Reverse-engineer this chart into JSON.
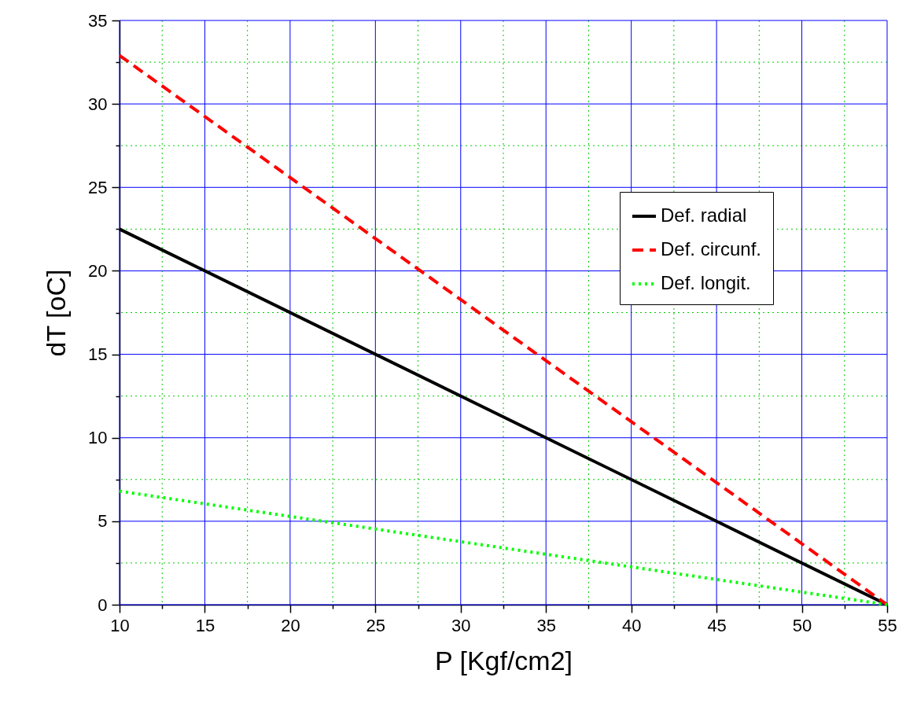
{
  "chart_data": {
    "type": "line",
    "xlabel": "P [Kgf/cm2]",
    "ylabel": "dT [oC]",
    "x": [
      10,
      55
    ],
    "series": [
      {
        "name": "Def. radial",
        "color": "#000000",
        "line_style": "solid",
        "values": [
          22.5,
          0
        ]
      },
      {
        "name": "Def. circunf.",
        "color": "#ff0000",
        "line_style": "dashed",
        "values": [
          32.9,
          0
        ]
      },
      {
        "name": "Def. longit.",
        "color": "#00ff00",
        "line_style": "dotted",
        "values": [
          6.8,
          0
        ]
      }
    ],
    "xlim": [
      10,
      55
    ],
    "xticks": [
      10,
      {
        "value": 12.5,
        "label": null
      },
      15,
      {
        "value": 17.5,
        "label": null
      },
      20,
      {
        "value": 22.5,
        "label": null
      },
      25,
      {
        "value": 27.5,
        "label": null
      },
      30,
      {
        "value": 32.5,
        "label": null
      },
      35,
      {
        "value": 37.5,
        "label": null
      },
      40,
      {
        "value": 42.5,
        "label": null
      },
      45,
      {
        "value": 47.5,
        "label": null
      },
      50,
      {
        "value": 52.5,
        "label": null
      },
      55
    ],
    "ylim": [
      0,
      35
    ],
    "yticks": [
      0,
      {
        "value": 2.5,
        "label": null
      },
      5,
      {
        "value": 7.5,
        "label": null
      },
      10,
      {
        "value": 12.5,
        "label": null
      },
      15,
      {
        "value": 17.5,
        "label": null
      },
      20,
      {
        "value": 22.5,
        "label": null
      },
      25,
      {
        "value": 27.5,
        "label": null
      },
      30,
      {
        "value": 32.5,
        "label": null
      },
      35
    ],
    "grid": true,
    "legend": "right",
    "marker": "none"
  }
}
